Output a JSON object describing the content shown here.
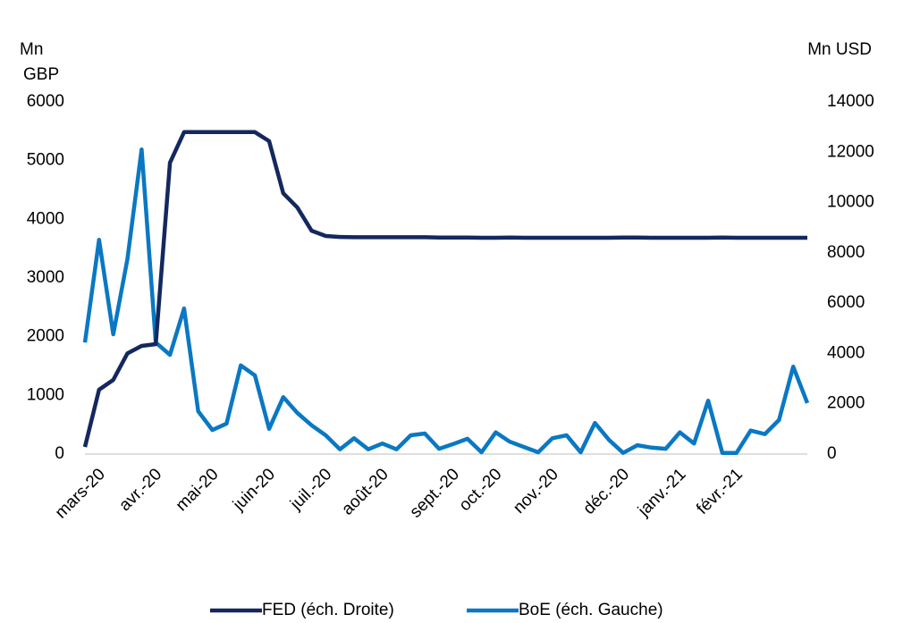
{
  "chart_data": {
    "type": "line",
    "ylabel": [
      "Mn",
      "GBP"
    ],
    "y2label": "Mn USD",
    "categories": [
      null,
      "mars-20",
      null,
      null,
      null,
      "avr.-20",
      null,
      null,
      null,
      "mai-20",
      null,
      null,
      null,
      "juin-20",
      null,
      null,
      null,
      "juil.-20",
      null,
      null,
      null,
      "août-20",
      null,
      null,
      null,
      null,
      "sept.-20",
      null,
      null,
      "oct.-20",
      null,
      null,
      null,
      "nov.-20",
      null,
      null,
      null,
      null,
      "déc.-20",
      null,
      null,
      null,
      "janv.-21",
      null,
      null,
      null,
      "févr.-21",
      null,
      null,
      null,
      null,
      null
    ],
    "series": [
      {
        "name": "FED (éch. Droite)",
        "color": "#14285f",
        "axis": "y2",
        "values": [
          280,
          2560,
          2950,
          4000,
          4300,
          4370,
          11580,
          12800,
          12800,
          12800,
          12800,
          12800,
          12800,
          12440,
          10370,
          9800,
          8880,
          8670,
          8630,
          8620,
          8620,
          8620,
          8620,
          8620,
          8620,
          8610,
          8610,
          8610,
          8600,
          8600,
          8610,
          8600,
          8600,
          8600,
          8600,
          8600,
          8600,
          8600,
          8610,
          8610,
          8600,
          8600,
          8600,
          8600,
          8600,
          8610,
          8600,
          8600,
          8600,
          8600,
          8600,
          8600
        ]
      },
      {
        "name": "BoE (éch. Gauche)",
        "color": "#0a78c2",
        "values": [
          1900,
          3650,
          2040,
          3320,
          5190,
          1900,
          1690,
          2480,
          730,
          410,
          520,
          1510,
          1340,
          430,
          970,
          700,
          490,
          320,
          80,
          270,
          80,
          180,
          80,
          320,
          350,
          90,
          170,
          260,
          30,
          370,
          210,
          120,
          30,
          270,
          320,
          30,
          530,
          240,
          20,
          150,
          110,
          90,
          370,
          180,
          910,
          20,
          20,
          400,
          340,
          580,
          1490,
          870
        ]
      }
    ],
    "ylim": [
      0,
      6000
    ],
    "yticks": [
      0,
      1000,
      2000,
      3000,
      4000,
      5000,
      6000
    ],
    "y2lim": [
      0,
      14000
    ],
    "y2ticks": [
      0,
      2000,
      4000,
      6000,
      8000,
      10000,
      12000,
      14000
    ],
    "grid": false,
    "legend": "bottom"
  }
}
